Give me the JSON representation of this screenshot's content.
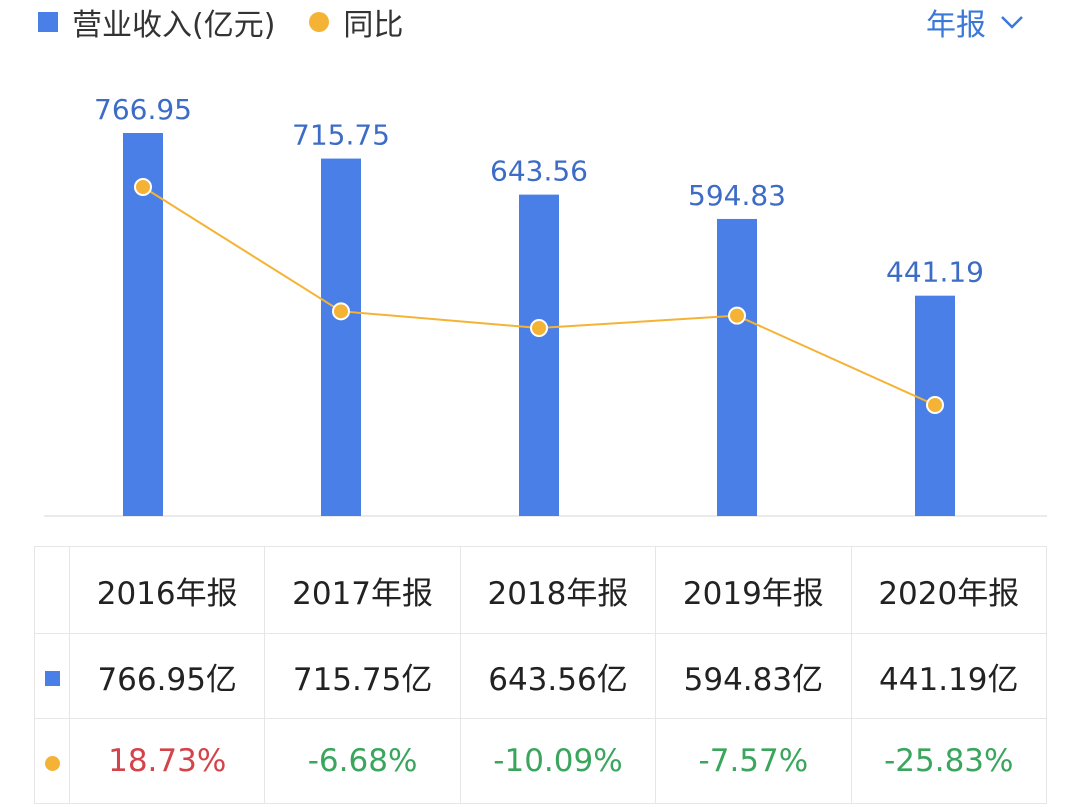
{
  "legend": {
    "series1_label": "营业收入(亿元)",
    "series2_label": "同比"
  },
  "period_selector": {
    "label": "年报"
  },
  "colors": {
    "bar": "#4a7fe8",
    "line": "#f5b335",
    "bar_label": "#3d6cc6",
    "positive": "#d4434a",
    "negative": "#3aa65d"
  },
  "chart_data": {
    "type": "bar",
    "categories": [
      "2016年报",
      "2017年报",
      "2018年报",
      "2019年报",
      "2020年报"
    ],
    "series": [
      {
        "name": "营业收入(亿元)",
        "type": "bar",
        "values": [
          766.95,
          715.75,
          643.56,
          594.83,
          441.19
        ]
      },
      {
        "name": "同比",
        "type": "line",
        "values": [
          18.73,
          -6.68,
          -10.09,
          -7.57,
          -25.83
        ]
      }
    ],
    "bar_labels": [
      "766.95",
      "715.75",
      "643.56",
      "594.83",
      "441.19"
    ],
    "grid": false,
    "legend_position": "top-left"
  },
  "table": {
    "headers": [
      "2016年报",
      "2017年报",
      "2018年报",
      "2019年报",
      "2020年报"
    ],
    "revenue_row": [
      "766.95亿",
      "715.75亿",
      "643.56亿",
      "594.83亿",
      "441.19亿"
    ],
    "yoy_row": [
      "18.73%",
      "-6.68%",
      "-10.09%",
      "-7.57%",
      "-25.83%"
    ]
  }
}
